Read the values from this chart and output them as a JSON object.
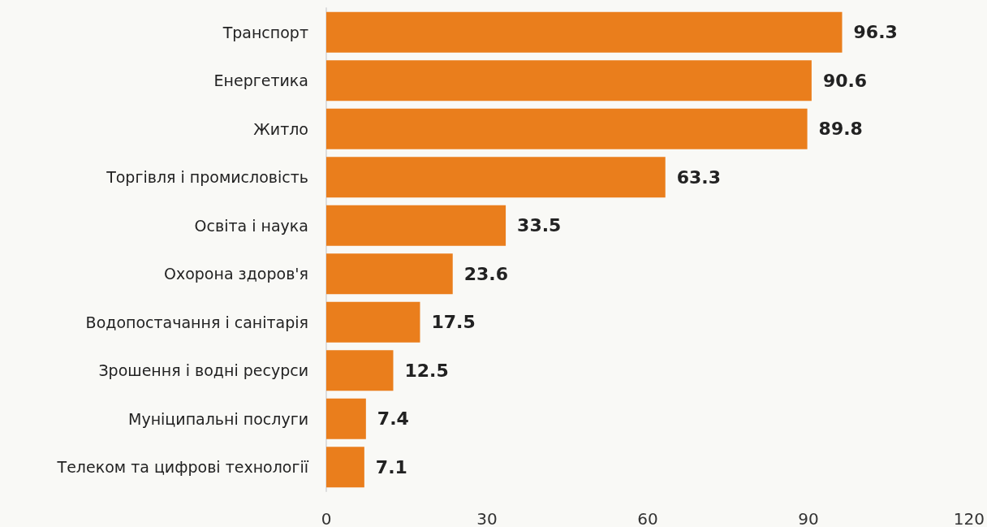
{
  "chart_data": {
    "type": "bar",
    "orientation": "horizontal",
    "categories": [
      "Транспорт",
      "Енергетика",
      "Житло",
      "Торгівля і промисловість",
      "Освіта і наука",
      "Охорона здоров'я",
      "Водопостачання і санітарія",
      "Зрошення і водні ресурси",
      "Муніципальні послуги",
      "Телеком та цифрові технології"
    ],
    "values": [
      96.3,
      90.6,
      89.8,
      63.3,
      33.5,
      23.6,
      17.5,
      12.5,
      7.4,
      7.1
    ],
    "color": "#ea7e1c",
    "xlim": [
      0,
      120
    ],
    "xticks": [
      0,
      30,
      60,
      90,
      120
    ],
    "grid": false,
    "data_labels": true
  }
}
